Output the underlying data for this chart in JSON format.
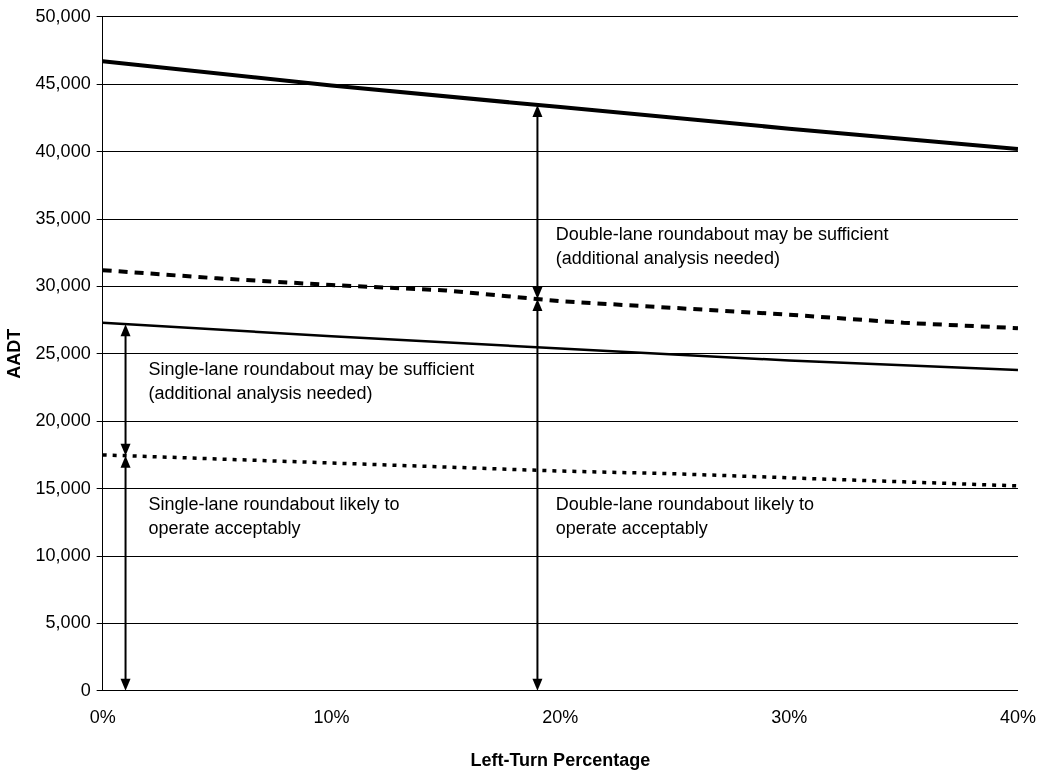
{
  "chart_data": {
    "type": "line",
    "xlabel": "Left-Turn Percentage",
    "ylabel": "AADT",
    "xlim": [
      0,
      40
    ],
    "xticks": [
      {
        "value": 0,
        "label": "0%"
      },
      {
        "value": 10,
        "label": "10%"
      },
      {
        "value": 20,
        "label": "20%"
      },
      {
        "value": 30,
        "label": "30%"
      },
      {
        "value": 40,
        "label": "40%"
      }
    ],
    "ylim": [
      0,
      50000
    ],
    "yticks": [
      {
        "value": 0,
        "label": "0"
      },
      {
        "value": 5000,
        "label": "5,000"
      },
      {
        "value": 10000,
        "label": "10,000"
      },
      {
        "value": 15000,
        "label": "15,000"
      },
      {
        "value": 20000,
        "label": "20,000"
      },
      {
        "value": 25000,
        "label": "25,000"
      },
      {
        "value": 30000,
        "label": "30,000"
      },
      {
        "value": 35000,
        "label": "35,000"
      },
      {
        "value": 40000,
        "label": "40,000"
      },
      {
        "value": 45000,
        "label": "45,000"
      },
      {
        "value": 50000,
        "label": "50,000"
      }
    ],
    "grid": "y",
    "legend": false,
    "marker": "none",
    "series": [
      {
        "color": "#000000",
        "line_style": "solid",
        "x": [
          0,
          10,
          20,
          30,
          40
        ],
        "values": [
          46700,
          44900,
          43300,
          41700,
          40200
        ]
      },
      {
        "color": "#000000",
        "line_style": "dashed",
        "x": [
          0,
          5,
          10,
          15,
          20,
          25,
          30,
          35,
          40
        ],
        "values": [
          31200,
          30600,
          30100,
          29700,
          28900,
          28400,
          27900,
          27300,
          26900
        ]
      },
      {
        "color": "#000000",
        "line_style": "solid",
        "x": [
          0,
          10,
          20,
          30,
          40
        ],
        "values": [
          27300,
          26300,
          25400,
          24500,
          23800
        ]
      },
      {
        "color": "#000000",
        "line_style": "dotted",
        "x": [
          0,
          5,
          10,
          15,
          20,
          25,
          30,
          35,
          40
        ],
        "values": [
          17500,
          17200,
          16900,
          16600,
          16300,
          16100,
          15800,
          15500,
          15200
        ]
      }
    ],
    "annotations": [
      "Double-lane roundabout may be sufficient (additional analysis needed)",
      "Single-lane roundabout may be sufficient (additional analysis needed)",
      "Single-lane roundabout likely to operate acceptably",
      "Double-lane roundabout likely to operate acceptably"
    ]
  }
}
